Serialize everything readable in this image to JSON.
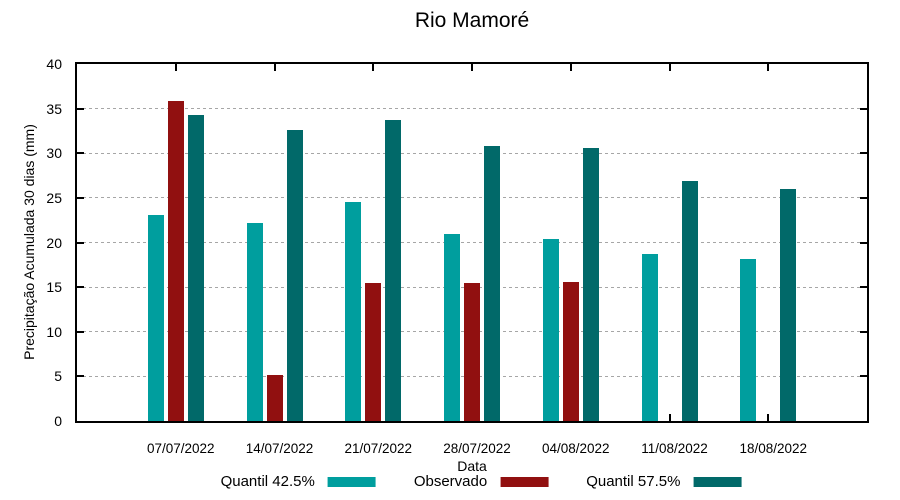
{
  "chart_data": {
    "type": "bar",
    "title": "Rio Mamoré",
    "xlabel": "Data",
    "ylabel": "Precipitação Acumulada 30 dias (mm)",
    "categories": [
      "07/07/2022",
      "14/07/2022",
      "21/07/2022",
      "28/07/2022",
      "04/08/2022",
      "11/08/2022",
      "18/08/2022"
    ],
    "series": [
      {
        "name": "Quantil 42.5%",
        "color": "#009E9E",
        "values": [
          23.1,
          22.2,
          24.5,
          21.0,
          20.4,
          18.7,
          18.2
        ]
      },
      {
        "name": "Observado",
        "color": "#911010",
        "values": [
          35.9,
          5.2,
          15.5,
          15.5,
          15.6,
          null,
          null
        ]
      },
      {
        "name": "Quantil 57.5%",
        "color": "#016969",
        "values": [
          34.3,
          32.6,
          33.7,
          30.8,
          30.6,
          26.9,
          26.0
        ]
      }
    ],
    "ylim": [
      0,
      40
    ],
    "yticks": [
      0,
      5,
      10,
      15,
      20,
      25,
      30,
      35,
      40
    ],
    "grid": "horizontal-dotted",
    "legend_position": "bottom",
    "bar_cluster": "grouped"
  }
}
